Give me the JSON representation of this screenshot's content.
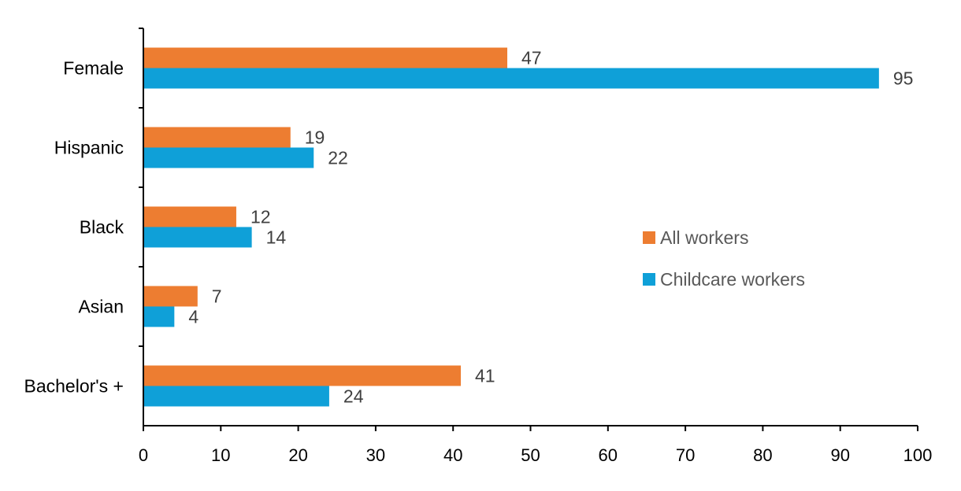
{
  "chart_data": {
    "type": "bar",
    "orientation": "horizontal",
    "title": "",
    "xlabel": "",
    "ylabel": "",
    "categories": [
      "Female",
      "Hispanic",
      "Black",
      "Asian",
      "Bachelor's +"
    ],
    "series": [
      {
        "name": "All workers",
        "color": "#ED7D31",
        "values": [
          47,
          19,
          12,
          7,
          41
        ]
      },
      {
        "name": "Childcare workers",
        "color": "#0FA0D8",
        "values": [
          95,
          22,
          14,
          4,
          24
        ]
      }
    ],
    "xlim": [
      0,
      100
    ],
    "xticks": [
      0,
      10,
      20,
      30,
      40,
      50,
      60,
      70,
      80,
      90,
      100
    ],
    "grid": false,
    "data_labels": true,
    "legend": {
      "position": "center-right"
    }
  }
}
